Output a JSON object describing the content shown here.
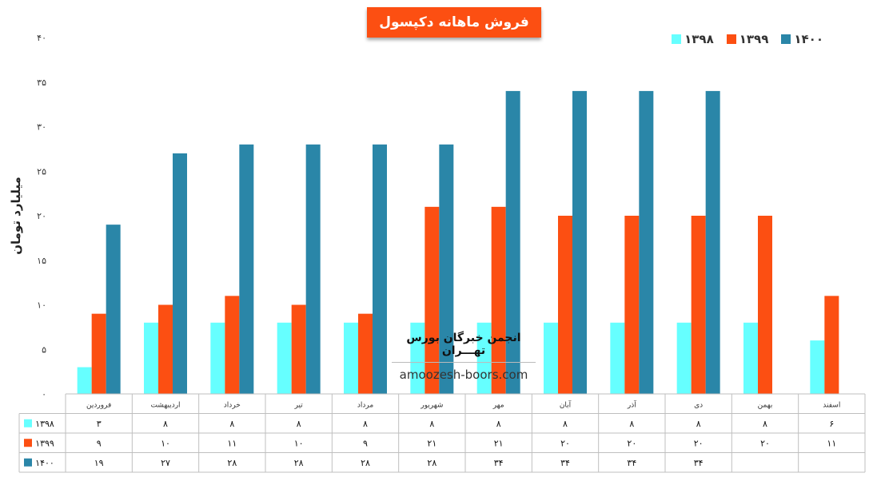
{
  "chart_data": {
    "type": "bar",
    "title": "فروش ماهانه دکپسول",
    "ylabel": "میلیارد تومان",
    "ylim": [
      0,
      40
    ],
    "yticks": [
      "۰",
      "۵",
      "۱۰",
      "۱۵",
      "۲۰",
      "۲۵",
      "۳۰",
      "۳۵",
      "۴۰"
    ],
    "grid": false,
    "legend_position": "top-right",
    "categories": [
      "فروردین",
      "اردیبهشت",
      "خرداد",
      "تیر",
      "مرداد",
      "شهریور",
      "مهر",
      "آبان",
      "آذر",
      "دی",
      "بهمن",
      "اسفند"
    ],
    "series": [
      {
        "name": "۱۳۹۸",
        "color": "#66ffff",
        "values": [
          3,
          8,
          8,
          8,
          8,
          8,
          8,
          8,
          8,
          8,
          8,
          6
        ],
        "labels": [
          "۳",
          "۸",
          "۸",
          "۸",
          "۸",
          "۸",
          "۸",
          "۸",
          "۸",
          "۸",
          "۸",
          "۶"
        ]
      },
      {
        "name": "۱۳۹۹",
        "color": "#fc4f12",
        "values": [
          9,
          10,
          11,
          10,
          9,
          21,
          21,
          20,
          20,
          20,
          20,
          11
        ],
        "labels": [
          "۹",
          "۱۰",
          "۱۱",
          "۱۰",
          "۹",
          "۲۱",
          "۲۱",
          "۲۰",
          "۲۰",
          "۲۰",
          "۲۰",
          "۱۱"
        ]
      },
      {
        "name": "۱۴۰۰",
        "color": "#2a86a8",
        "values": [
          19,
          27,
          28,
          28,
          28,
          28,
          34,
          34,
          34,
          34,
          null,
          null
        ],
        "labels": [
          "۱۹",
          "۲۷",
          "۲۸",
          "۲۸",
          "۲۸",
          "۲۸",
          "۳۴",
          "۳۴",
          "۳۴",
          "۳۴",
          "",
          ""
        ]
      }
    ]
  },
  "watermark": {
    "name": "انجمن خبرگان بورس تهـــران",
    "site": "amoozesh-boors.com"
  }
}
